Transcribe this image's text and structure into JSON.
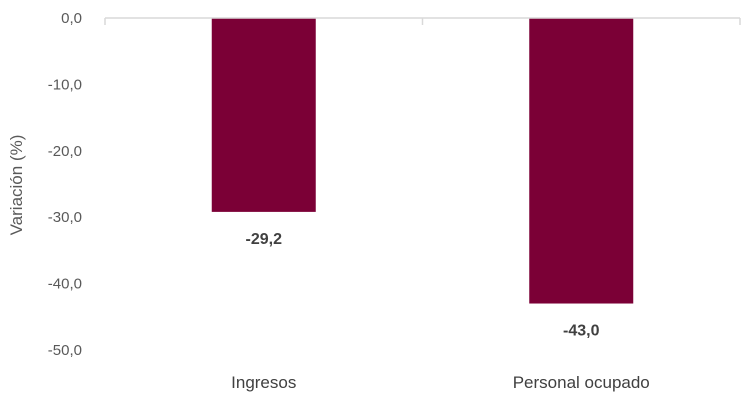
{
  "chart_data": {
    "type": "bar",
    "categories": [
      "Ingresos",
      "Personal ocupado"
    ],
    "values": [
      -29.2,
      -43.0
    ],
    "data_labels": [
      "-29,2",
      "-43,0"
    ],
    "ylabel": "Variación (%)",
    "ylim": [
      -50,
      0
    ],
    "yticks": [
      0,
      -10,
      -20,
      -30,
      -40,
      -50
    ],
    "ytick_labels": [
      "0,0",
      "-10,0",
      "-20,0",
      "-30,0",
      "-40,0",
      "-50,0"
    ],
    "grid": false,
    "legend": "none",
    "bar_color": "#7b0036",
    "axis_color": "#d9d9d9"
  }
}
